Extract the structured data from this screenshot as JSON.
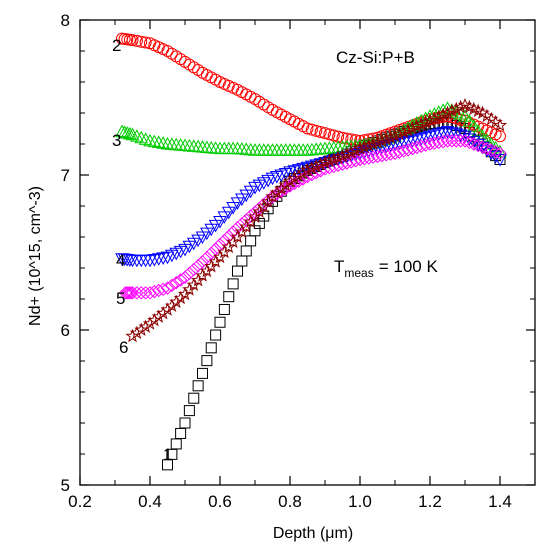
{
  "chart_data": {
    "type": "scatter",
    "xlabel": "Depth (μm)",
    "ylabel": "Nd+ (10^15, cm^-3)",
    "xlim": [
      0.2,
      1.5
    ],
    "ylim": [
      5,
      8
    ],
    "xticks": [
      "0.2",
      "0.4",
      "0.6",
      "0.8",
      "1.0",
      "1.2",
      "1.4"
    ],
    "yticks": [
      "5",
      "6",
      "7",
      "8"
    ],
    "grid": false,
    "annotations": {
      "sample": "Cz-Si:P+B",
      "temperature_prefix": "T",
      "temperature_subscript": "meas",
      "temperature_value": "= 100 K"
    },
    "series": [
      {
        "name": "1",
        "marker": "square",
        "color": "#000000",
        "points": [
          [
            0.45,
            5.13
          ],
          [
            0.5,
            5.4
          ],
          [
            0.55,
            5.72
          ],
          [
            0.6,
            6.05
          ],
          [
            0.65,
            6.38
          ],
          [
            0.7,
            6.64
          ],
          [
            0.75,
            6.83
          ],
          [
            0.8,
            6.96
          ],
          [
            0.85,
            7.03
          ],
          [
            0.9,
            7.08
          ],
          [
            0.95,
            7.12
          ],
          [
            1.0,
            7.18
          ],
          [
            1.05,
            7.22
          ],
          [
            1.1,
            7.26
          ],
          [
            1.15,
            7.3
          ],
          [
            1.2,
            7.33
          ],
          [
            1.25,
            7.34
          ],
          [
            1.3,
            7.3
          ],
          [
            1.35,
            7.2
          ],
          [
            1.4,
            7.1
          ]
        ]
      },
      {
        "name": "2",
        "marker": "circle",
        "color": "#ff0000",
        "points": [
          [
            0.32,
            7.88
          ],
          [
            0.35,
            7.87
          ],
          [
            0.4,
            7.85
          ],
          [
            0.45,
            7.8
          ],
          [
            0.5,
            7.73
          ],
          [
            0.55,
            7.66
          ],
          [
            0.6,
            7.6
          ],
          [
            0.65,
            7.55
          ],
          [
            0.7,
            7.49
          ],
          [
            0.75,
            7.42
          ],
          [
            0.8,
            7.36
          ],
          [
            0.85,
            7.3
          ],
          [
            0.9,
            7.27
          ],
          [
            0.95,
            7.24
          ],
          [
            1.0,
            7.22
          ],
          [
            1.05,
            7.24
          ],
          [
            1.1,
            7.28
          ],
          [
            1.15,
            7.32
          ],
          [
            1.2,
            7.36
          ],
          [
            1.25,
            7.38
          ],
          [
            1.3,
            7.35
          ],
          [
            1.35,
            7.3
          ],
          [
            1.4,
            7.25
          ]
        ]
      },
      {
        "name": "3",
        "marker": "triangle-up",
        "color": "#00cc00",
        "points": [
          [
            0.32,
            7.28
          ],
          [
            0.35,
            7.26
          ],
          [
            0.4,
            7.22
          ],
          [
            0.45,
            7.2
          ],
          [
            0.5,
            7.19
          ],
          [
            0.55,
            7.18
          ],
          [
            0.6,
            7.17
          ],
          [
            0.65,
            7.17
          ],
          [
            0.7,
            7.16
          ],
          [
            0.75,
            7.16
          ],
          [
            0.8,
            7.16
          ],
          [
            0.85,
            7.16
          ],
          [
            0.9,
            7.17
          ],
          [
            0.95,
            7.18
          ],
          [
            1.0,
            7.19
          ],
          [
            1.05,
            7.21
          ],
          [
            1.1,
            7.25
          ],
          [
            1.15,
            7.32
          ],
          [
            1.2,
            7.38
          ],
          [
            1.25,
            7.43
          ],
          [
            1.3,
            7.38
          ],
          [
            1.35,
            7.25
          ],
          [
            1.4,
            7.15
          ]
        ]
      },
      {
        "name": "4",
        "marker": "triangle-down",
        "color": "#0000ff",
        "points": [
          [
            0.32,
            6.46
          ],
          [
            0.35,
            6.45
          ],
          [
            0.4,
            6.45
          ],
          [
            0.45,
            6.47
          ],
          [
            0.5,
            6.52
          ],
          [
            0.55,
            6.6
          ],
          [
            0.6,
            6.7
          ],
          [
            0.65,
            6.82
          ],
          [
            0.7,
            6.92
          ],
          [
            0.75,
            6.98
          ],
          [
            0.8,
            7.02
          ],
          [
            0.85,
            7.05
          ],
          [
            0.9,
            7.08
          ],
          [
            0.95,
            7.11
          ],
          [
            1.0,
            7.14
          ],
          [
            1.05,
            7.17
          ],
          [
            1.1,
            7.2
          ],
          [
            1.15,
            7.22
          ],
          [
            1.2,
            7.25
          ],
          [
            1.25,
            7.28
          ],
          [
            1.3,
            7.25
          ],
          [
            1.35,
            7.18
          ],
          [
            1.4,
            7.1
          ]
        ]
      },
      {
        "name": "5",
        "marker": "diamond",
        "color": "#ff00ff",
        "points": [
          [
            0.33,
            6.24
          ],
          [
            0.35,
            6.24
          ],
          [
            0.4,
            6.24
          ],
          [
            0.45,
            6.27
          ],
          [
            0.5,
            6.34
          ],
          [
            0.55,
            6.44
          ],
          [
            0.6,
            6.55
          ],
          [
            0.65,
            6.66
          ],
          [
            0.7,
            6.76
          ],
          [
            0.75,
            6.86
          ],
          [
            0.8,
            6.93
          ],
          [
            0.85,
            6.99
          ],
          [
            0.9,
            7.04
          ],
          [
            0.95,
            7.07
          ],
          [
            1.0,
            7.1
          ],
          [
            1.05,
            7.12
          ],
          [
            1.1,
            7.14
          ],
          [
            1.15,
            7.17
          ],
          [
            1.2,
            7.2
          ],
          [
            1.25,
            7.22
          ],
          [
            1.3,
            7.22
          ],
          [
            1.35,
            7.18
          ],
          [
            1.4,
            7.14
          ]
        ]
      },
      {
        "name": "6",
        "marker": "star",
        "color": "#8b0000",
        "points": [
          [
            0.35,
            5.96
          ],
          [
            0.4,
            6.04
          ],
          [
            0.45,
            6.13
          ],
          [
            0.5,
            6.23
          ],
          [
            0.55,
            6.35
          ],
          [
            0.6,
            6.47
          ],
          [
            0.65,
            6.6
          ],
          [
            0.7,
            6.73
          ],
          [
            0.75,
            6.86
          ],
          [
            0.8,
            6.96
          ],
          [
            0.85,
            7.03
          ],
          [
            0.9,
            7.08
          ],
          [
            0.95,
            7.12
          ],
          [
            1.0,
            7.17
          ],
          [
            1.05,
            7.21
          ],
          [
            1.1,
            7.25
          ],
          [
            1.15,
            7.3
          ],
          [
            1.2,
            7.35
          ],
          [
            1.25,
            7.4
          ],
          [
            1.3,
            7.45
          ],
          [
            1.35,
            7.4
          ],
          [
            1.4,
            7.32
          ]
        ]
      }
    ]
  }
}
